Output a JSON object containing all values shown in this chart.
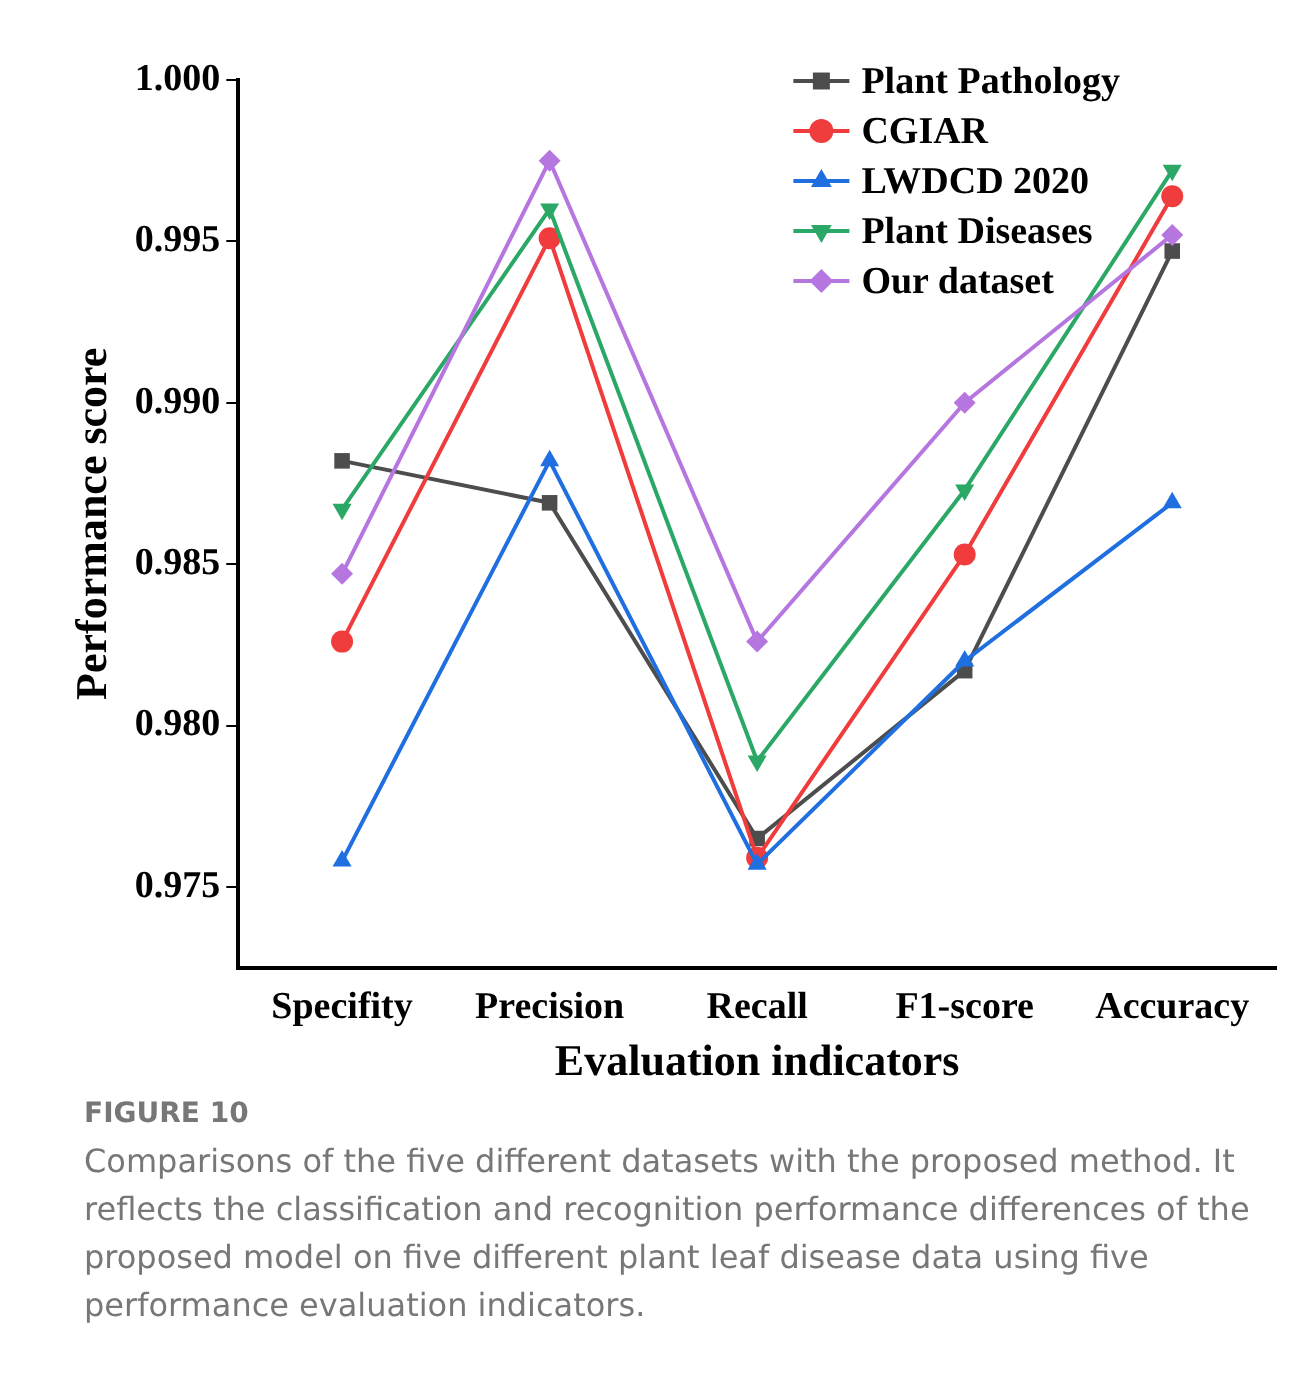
{
  "chart_data": {
    "type": "line",
    "xlabel": "Evaluation indicators",
    "ylabel": "Performance score",
    "categories": [
      "Specifity",
      "Precision",
      "Recall",
      "F1-score",
      "Accuracy"
    ],
    "series": [
      {
        "name": "Plant Pathology",
        "color": "#4d4d4d",
        "marker": "square",
        "values": [
          0.9882,
          0.9869,
          0.9765,
          0.9817,
          0.9947
        ]
      },
      {
        "name": "CGIAR",
        "color": "#f03c3c",
        "marker": "circle",
        "values": [
          0.9826,
          0.9951,
          0.9759,
          0.9853,
          0.9964
        ]
      },
      {
        "name": "LWDCD 2020",
        "color": "#1f6fe0",
        "marker": "triangle",
        "values": [
          0.9758,
          0.9882,
          0.9757,
          0.982,
          0.9869
        ]
      },
      {
        "name": "Plant Diseases",
        "color": "#2ba866",
        "marker": "triangle-down",
        "values": [
          0.9867,
          0.996,
          0.9789,
          0.9873,
          0.9972
        ]
      },
      {
        "name": "Our dataset",
        "color": "#b676e0",
        "marker": "diamond",
        "values": [
          0.9847,
          0.9975,
          0.9826,
          0.99,
          0.9952
        ]
      }
    ],
    "ylim": [
      0.9725,
      1.0
    ],
    "yticks": [
      {
        "value": 0.975,
        "label": "0.975"
      },
      {
        "value": 0.98,
        "label": "0.980"
      },
      {
        "value": 0.985,
        "label": "0.985"
      },
      {
        "value": 0.99,
        "label": "0.990"
      },
      {
        "value": 0.995,
        "label": "0.995"
      },
      {
        "value": 1.0,
        "label": "1.000"
      }
    ],
    "grid": false,
    "legend": "top right",
    "line_style": "solid",
    "annotations": [
      "FIGURE 10",
      "Comparisons of the five different datasets with the proposed method. It reflects the classification and recognition performance differences of the proposed model on five different plant leaf disease data using five performance evaluation indicators."
    ]
  }
}
